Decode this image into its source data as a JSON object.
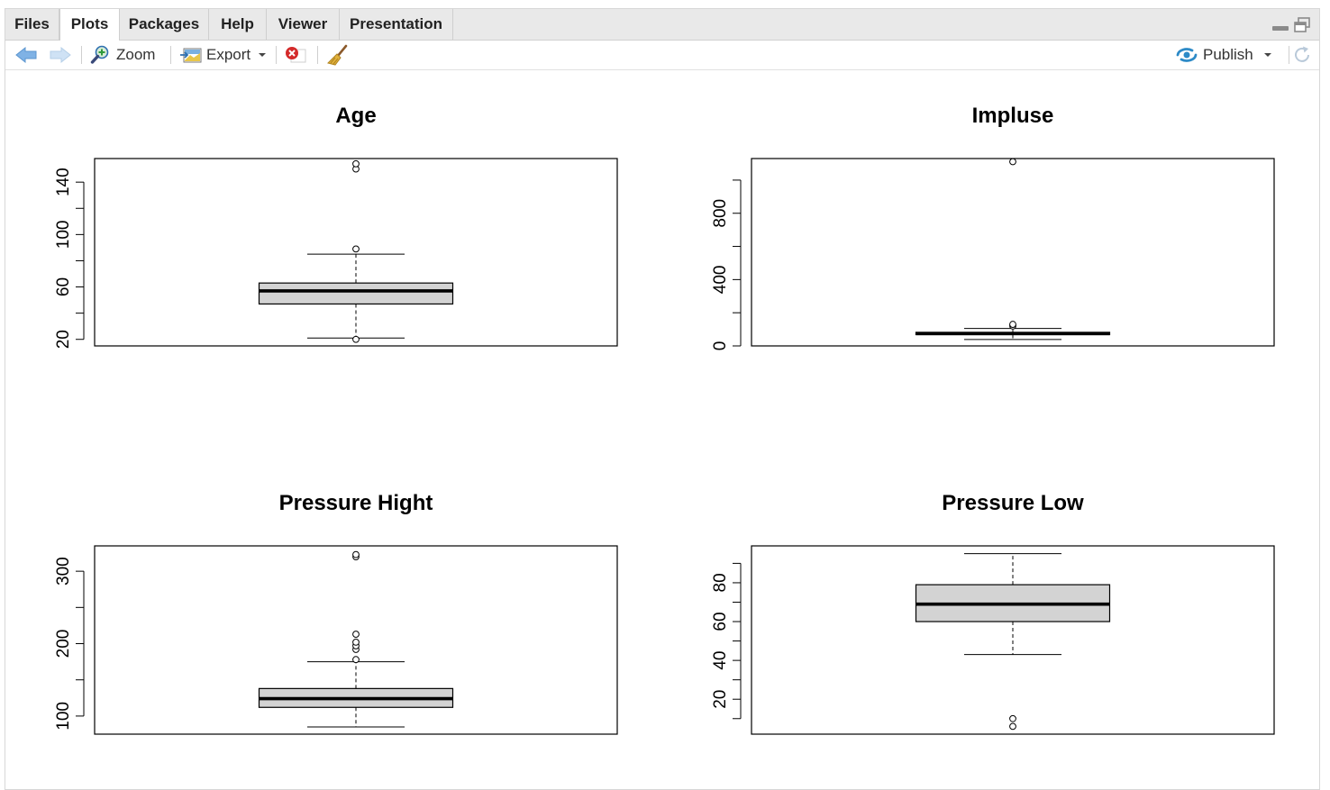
{
  "tabs": [
    "Files",
    "Plots",
    "Packages",
    "Help",
    "Viewer",
    "Presentation"
  ],
  "active_tab": "Plots",
  "toolbar": {
    "zoom_label": "Zoom",
    "export_label": "Export",
    "publish_label": "Publish"
  },
  "chart_data": [
    {
      "type": "boxplot",
      "title": "Age",
      "ylim": [
        15,
        158
      ],
      "yticks": [
        20,
        60,
        100,
        140
      ],
      "box": {
        "whisker_low": 21,
        "q1": 47,
        "median": 57,
        "q3": 63,
        "whisker_high": 85
      },
      "outliers": [
        20,
        89,
        150,
        154
      ]
    },
    {
      "type": "boxplot",
      "title": "Impluse",
      "ylim": [
        0,
        1130
      ],
      "yticks": [
        0,
        400,
        800
      ],
      "box": {
        "whisker_low": 39,
        "q1": 68,
        "median": 74,
        "q3": 82,
        "whisker_high": 105
      },
      "outliers": [
        120,
        130,
        1111
      ]
    },
    {
      "type": "boxplot",
      "title": "Pressure Hight",
      "ylim": [
        75,
        335
      ],
      "yticks": [
        100,
        200,
        300
      ],
      "box": {
        "whisker_low": 85,
        "q1": 112,
        "median": 124,
        "q3": 138,
        "whisker_high": 175
      },
      "outliers": [
        178,
        192,
        197,
        202,
        213,
        320,
        323
      ]
    },
    {
      "type": "boxplot",
      "title": "Pressure Low",
      "ylim": [
        2,
        99
      ],
      "yticks": [
        20,
        40,
        60,
        80
      ],
      "box": {
        "whisker_low": 43,
        "q1": 60,
        "median": 69,
        "q3": 79,
        "whisker_high": 95
      },
      "outliers": [
        6,
        10
      ]
    }
  ]
}
